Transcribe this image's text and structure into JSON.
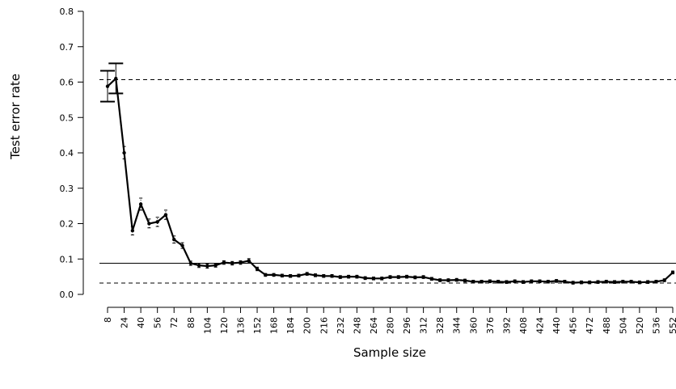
{
  "chart_data": {
    "type": "line",
    "title": "",
    "xlabel": "Sample size",
    "ylabel": "Test error rate",
    "xlim": [
      8,
      552
    ],
    "ylim": [
      0,
      0.8
    ],
    "x_ticks": [
      8,
      24,
      40,
      56,
      72,
      88,
      104,
      120,
      136,
      152,
      168,
      184,
      200,
      216,
      232,
      248,
      264,
      280,
      296,
      312,
      328,
      344,
      360,
      376,
      392,
      408,
      424,
      440,
      456,
      472,
      488,
      504,
      520,
      536,
      552
    ],
    "y_ticks": [
      0.0,
      0.1,
      0.2,
      0.3,
      0.4,
      0.5,
      0.6,
      0.7,
      0.8
    ],
    "y_tick_labels": [
      "0.0",
      "0.1",
      "0.2",
      "0.3",
      "0.4",
      "0.5",
      "0.6",
      "0.7",
      "0.8"
    ],
    "grid": false,
    "reference_lines": [
      {
        "y": 0.607,
        "style": "dashed"
      },
      {
        "y": 0.088,
        "style": "solid"
      },
      {
        "y": 0.032,
        "style": "dashed"
      }
    ],
    "series": [
      {
        "x": [
          8,
          16,
          24,
          32,
          40,
          48,
          56,
          64,
          72,
          80,
          88,
          96,
          104,
          112,
          120,
          128,
          136,
          144,
          152,
          160,
          168,
          176,
          184,
          192,
          200,
          208,
          216,
          224,
          232,
          240,
          248,
          256,
          264,
          272,
          280,
          288,
          296,
          304,
          312,
          320,
          328,
          336,
          344,
          352,
          360,
          368,
          376,
          384,
          392,
          400,
          408,
          416,
          424,
          432,
          440,
          448,
          456,
          464,
          472,
          480,
          488,
          496,
          504,
          512,
          520,
          528,
          536,
          544,
          552
        ],
        "y": [
          0.588,
          0.61,
          0.4,
          0.18,
          0.255,
          0.2,
          0.205,
          0.225,
          0.155,
          0.138,
          0.088,
          0.082,
          0.08,
          0.082,
          0.09,
          0.088,
          0.09,
          0.095,
          0.072,
          0.055,
          0.055,
          0.053,
          0.052,
          0.053,
          0.058,
          0.054,
          0.052,
          0.052,
          0.049,
          0.05,
          0.05,
          0.046,
          0.045,
          0.045,
          0.049,
          0.049,
          0.05,
          0.048,
          0.049,
          0.044,
          0.04,
          0.04,
          0.041,
          0.039,
          0.036,
          0.036,
          0.037,
          0.036,
          0.035,
          0.037,
          0.035,
          0.037,
          0.037,
          0.036,
          0.038,
          0.036,
          0.033,
          0.034,
          0.034,
          0.035,
          0.036,
          0.035,
          0.036,
          0.036,
          0.034,
          0.035,
          0.036,
          0.04,
          0.062
        ],
        "error_low": [
          0.545,
          0.568,
          0.383,
          0.168,
          0.238,
          0.188,
          0.192,
          0.212,
          0.145,
          0.13,
          0.082,
          0.076,
          0.074,
          0.077,
          0.085,
          0.083,
          0.085,
          0.089,
          0.067,
          0.051,
          0.051,
          0.049,
          0.048,
          0.049,
          0.054,
          0.05,
          0.048,
          0.048,
          0.045,
          0.046,
          0.046,
          0.042,
          0.041,
          0.041,
          0.045,
          0.045,
          0.046,
          0.044,
          0.045,
          0.04,
          0.036,
          0.036,
          0.037,
          0.035,
          0.032,
          0.032,
          0.033,
          0.032,
          0.031,
          0.033,
          0.031,
          0.033,
          0.033,
          0.032,
          0.034,
          0.032,
          0.029,
          0.03,
          0.03,
          0.031,
          0.032,
          0.031,
          0.032,
          0.032,
          0.03,
          0.031,
          0.032,
          0.036,
          0.058
        ],
        "error_high": [
          0.632,
          0.653,
          0.418,
          0.192,
          0.272,
          0.213,
          0.218,
          0.238,
          0.165,
          0.146,
          0.094,
          0.088,
          0.086,
          0.087,
          0.095,
          0.093,
          0.095,
          0.101,
          0.077,
          0.059,
          0.059,
          0.057,
          0.056,
          0.057,
          0.062,
          0.058,
          0.056,
          0.056,
          0.053,
          0.054,
          0.054,
          0.05,
          0.049,
          0.049,
          0.053,
          0.053,
          0.054,
          0.052,
          0.053,
          0.048,
          0.044,
          0.044,
          0.045,
          0.043,
          0.04,
          0.04,
          0.041,
          0.04,
          0.039,
          0.041,
          0.039,
          0.041,
          0.041,
          0.04,
          0.042,
          0.04,
          0.037,
          0.038,
          0.038,
          0.039,
          0.04,
          0.039,
          0.04,
          0.04,
          0.038,
          0.039,
          0.04,
          0.044,
          0.066
        ],
        "color": "#000000"
      }
    ]
  }
}
